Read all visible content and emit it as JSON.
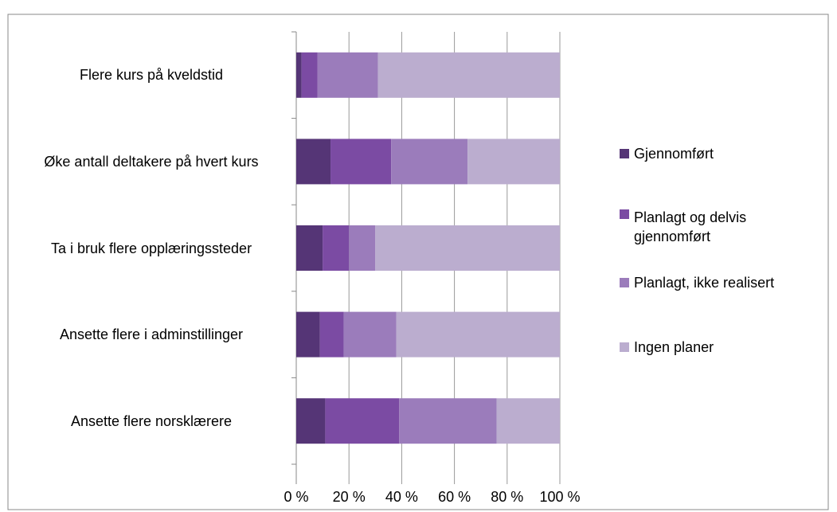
{
  "chart_data": {
    "type": "stacked_barh",
    "categories": [
      "Flere kurs på kveldstid",
      "Øke antall deltakere på hvert kurs",
      "Ta i bruk flere opplæringssteder",
      "Ansette flere i adminstillinger",
      "Ansette flere norsklærere"
    ],
    "series": [
      {
        "name": "Gjennomført",
        "color": "#553576",
        "values": [
          2,
          13,
          10,
          9,
          11
        ]
      },
      {
        "name": "Planlagt og delvis gjennomført",
        "color": "#7b4ba3",
        "values": [
          6,
          23,
          10,
          9,
          28
        ]
      },
      {
        "name": "Planlagt, ikke realisert",
        "color": "#9b7cbb",
        "values": [
          23,
          29,
          10,
          20,
          37
        ]
      },
      {
        "name": "Ingen planer",
        "color": "#bbadcf",
        "values": [
          69,
          35,
          70,
          62,
          24
        ]
      }
    ],
    "xlim": [
      0,
      100
    ],
    "xticks": [
      {
        "value": 0,
        "label": "0 %"
      },
      {
        "value": 20,
        "label": "20 %"
      },
      {
        "value": 40,
        "label": "40 %"
      },
      {
        "value": 60,
        "label": "60 %"
      },
      {
        "value": 80,
        "label": "80 %"
      },
      {
        "value": 100,
        "label": "100 %"
      }
    ],
    "grid": true,
    "legend": "right"
  }
}
